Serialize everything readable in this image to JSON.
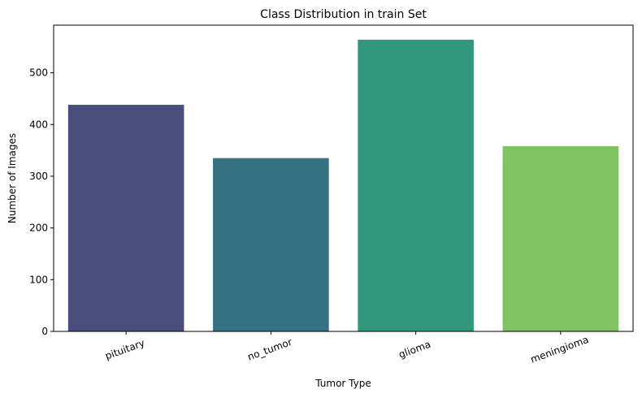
{
  "chart_data": {
    "type": "bar",
    "title": "Class Distribution in train Set",
    "xlabel": "Tumor Type",
    "ylabel": "Number of Images",
    "categories": [
      "pituitary",
      "no_tumor",
      "glioma",
      "meningioma"
    ],
    "values": [
      438,
      335,
      564,
      358
    ],
    "colors": [
      "#4a4c7c",
      "#357180",
      "#33987b",
      "#80c363"
    ],
    "ylim": [
      0,
      592
    ],
    "yticks": [
      0,
      100,
      200,
      300,
      400,
      500
    ],
    "xtick_rotation": -20,
    "grid": false,
    "legend": "none"
  }
}
